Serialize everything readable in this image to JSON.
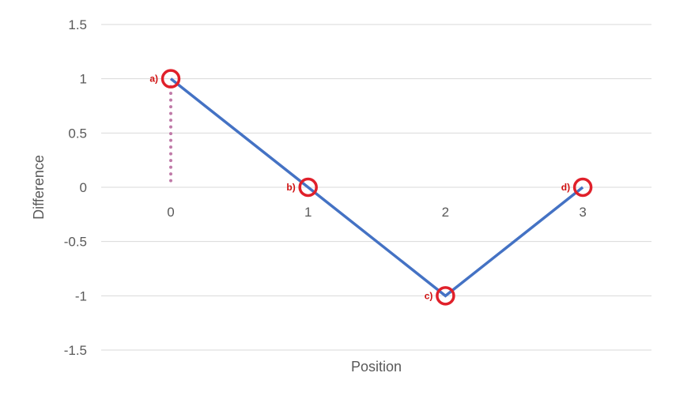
{
  "chart_data": {
    "type": "line",
    "title": "",
    "xlabel": "Position",
    "ylabel": "Difference",
    "x": [
      0,
      1,
      2,
      3
    ],
    "x_tick_labels": [
      "0",
      "1",
      "2",
      "3"
    ],
    "series": [
      {
        "values": [
          1,
          0,
          -1,
          0
        ]
      }
    ],
    "ylim": [
      -1.5,
      1.5
    ],
    "y_ticks": [
      1.5,
      1,
      0.5,
      0,
      -0.5,
      -1,
      -1.5
    ],
    "y_tick_labels": [
      "1.5",
      "1",
      "0.5",
      "0",
      "-0.5",
      "-1",
      "-1.5"
    ],
    "grid": true,
    "legend": "none",
    "annotations": [
      {
        "label": "a)",
        "x": 0,
        "y": 1
      },
      {
        "label": "b)",
        "x": 1,
        "y": 0
      },
      {
        "label": "c)",
        "x": 2,
        "y": -1
      },
      {
        "label": "d)",
        "x": 3,
        "y": 0
      }
    ],
    "reference_line": {
      "x": 0,
      "y_from": 0,
      "y_to": 1,
      "style": "dotted"
    },
    "colors": {
      "line": "#4472C4",
      "marker": "#E0202A",
      "annotation_text": "#D01010",
      "reference_line": "#C07AA8",
      "grid": "#D9D9D9",
      "text": "#595959"
    }
  }
}
